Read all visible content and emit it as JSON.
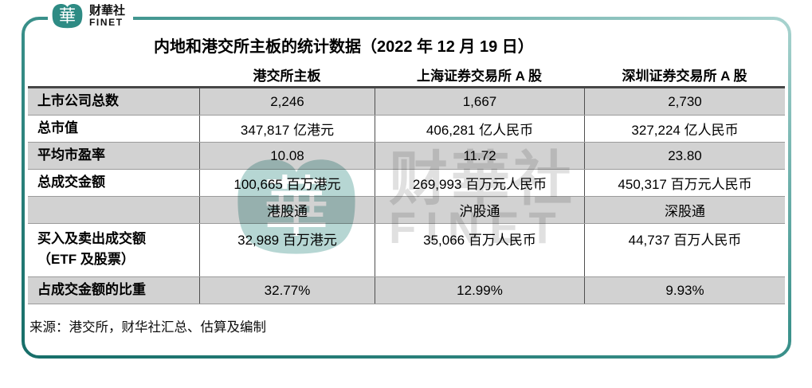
{
  "brand": {
    "name_cn": "财華社",
    "name_en": "FINET",
    "seal_glyph": "華"
  },
  "watermark": {
    "name_cn": "财華社",
    "name_en": "FINET"
  },
  "source": "来源：港交所，财华社汇总、估算及编制",
  "colors": {
    "frame_teal_dark": "#176e69",
    "frame_teal_light": "#a8d3cf",
    "logo_teal": "#2e8b84",
    "row_shade": "#d2d2d2",
    "table_top_border": "#474747",
    "watermark_teal": "#7ab5ae",
    "watermark_gray": "#c7c7c7"
  },
  "chart_data": {
    "type": "table",
    "title": "内地和港交所主板的统计数据（2022 年 12 月 19 日）",
    "columns": [
      "港交所主板",
      "上海证券交易所 A 股",
      "深圳证券交易所 A 股"
    ],
    "rows": [
      {
        "label": "上市公司总数",
        "values": [
          "2,246",
          "1,667",
          "2,730"
        ],
        "shade": true,
        "tall": false
      },
      {
        "label": "总市值",
        "values": [
          "347,817 亿港元",
          "406,281 亿人民币",
          "327,224 亿人民币"
        ],
        "shade": false,
        "tall": false
      },
      {
        "label": "平均市盈率",
        "values": [
          "10.08",
          "11.72",
          "23.80"
        ],
        "shade": true,
        "tall": false
      },
      {
        "label": "总成交金额",
        "values": [
          "100,665 百万港元",
          "269,993 百万元人民币",
          "450,317 百万元人民币"
        ],
        "shade": false,
        "tall": false
      },
      {
        "label": "",
        "values": [
          "港股通",
          "沪股通",
          "深股通"
        ],
        "shade": true,
        "tall": false
      },
      {
        "label": "买入及卖出成交额\n（ETF 及股票）",
        "values": [
          "32,989 百万港元",
          "35,066 百万人民币",
          "44,737 百万人民币"
        ],
        "shade": false,
        "tall": true
      },
      {
        "label": "占成交金额的比重",
        "values": [
          "32.77%",
          "12.99%",
          "9.93%"
        ],
        "shade": true,
        "tall": false
      }
    ]
  }
}
